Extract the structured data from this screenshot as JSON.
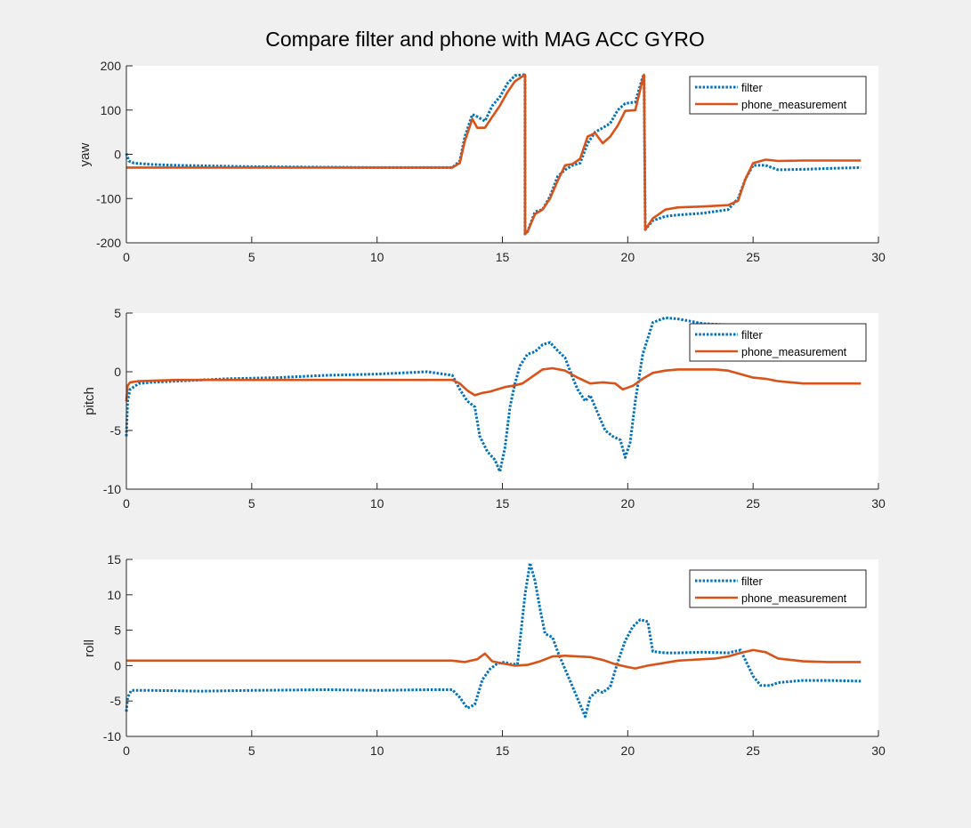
{
  "figure": {
    "title": "Compare filter and phone with MAG ACC GYRO"
  },
  "colors": {
    "filter": "#0072BD",
    "phone_measurement": "#D95319",
    "axes_background": "#ffffff",
    "figure_background": "#f0f0f0",
    "axis_line": "#262626"
  },
  "chart_data": [
    {
      "type": "line",
      "ylabel": "yaw",
      "xlabel": "",
      "xlim": [
        0,
        30
      ],
      "ylim": [
        -200,
        200
      ],
      "xticks": [
        0,
        5,
        10,
        15,
        20,
        25,
        30
      ],
      "yticks": [
        -200,
        -100,
        0,
        100,
        200
      ],
      "legend_position": "top-right",
      "series": [
        {
          "name": "filter",
          "style": "dotted",
          "x": [
            0,
            0.1,
            0.3,
            1,
            2,
            5,
            10,
            13,
            13.3,
            13.5,
            13.8,
            14,
            14.3,
            14.6,
            14.9,
            15.2,
            15.5,
            15.85,
            15.9,
            15.9,
            16.0,
            16.3,
            16.6,
            16.9,
            17.2,
            17.5,
            17.8,
            18.1,
            18.4,
            18.7,
            19.0,
            19.3,
            19.6,
            19.9,
            20.3,
            20.6,
            20.65,
            20.7,
            21.0,
            21.5,
            22,
            23,
            24,
            24.4,
            24.7,
            25,
            25.5,
            26,
            27,
            28,
            29.3
          ],
          "y": [
            2,
            -15,
            -20,
            -23,
            -25,
            -28,
            -30,
            -30,
            -15,
            40,
            90,
            85,
            75,
            110,
            130,
            160,
            178,
            180,
            180,
            -180,
            -175,
            -130,
            -125,
            -95,
            -50,
            -35,
            -25,
            -20,
            25,
            50,
            60,
            70,
            100,
            115,
            118,
            175,
            180,
            -170,
            -150,
            -140,
            -137,
            -133,
            -125,
            -100,
            -55,
            -25,
            -25,
            -35,
            -34,
            -32,
            -30
          ]
        },
        {
          "name": "phone_measurement",
          "style": "solid",
          "x": [
            0,
            1,
            5,
            10,
            13,
            13.3,
            13.5,
            13.8,
            14,
            14.3,
            14.6,
            14.9,
            15.2,
            15.5,
            15.85,
            15.9,
            15.9,
            16.0,
            16.3,
            16.6,
            16.9,
            17.2,
            17.5,
            17.8,
            18.1,
            18.4,
            18.7,
            19.0,
            19.3,
            19.6,
            19.9,
            20.3,
            20.6,
            20.65,
            20.7,
            21.0,
            21.5,
            22,
            23,
            24,
            24.4,
            24.7,
            25,
            25.5,
            26,
            27,
            28,
            29.3
          ],
          "y": [
            -30,
            -30,
            -30,
            -30,
            -30,
            -20,
            30,
            80,
            60,
            60,
            85,
            110,
            140,
            165,
            178,
            180,
            -180,
            -175,
            -135,
            -125,
            -100,
            -60,
            -25,
            -22,
            -10,
            40,
            48,
            25,
            40,
            65,
            98,
            100,
            170,
            180,
            -170,
            -145,
            -125,
            -120,
            -118,
            -115,
            -105,
            -55,
            -20,
            -12,
            -15,
            -14,
            -14,
            -14
          ]
        }
      ]
    },
    {
      "type": "line",
      "ylabel": "pitch",
      "xlabel": "",
      "xlim": [
        0,
        30
      ],
      "ylim": [
        -10,
        5
      ],
      "xticks": [
        0,
        5,
        10,
        15,
        20,
        25,
        30
      ],
      "yticks": [
        -10,
        -5,
        0,
        5
      ],
      "legend_position": "top-right",
      "series": [
        {
          "name": "filter",
          "style": "dotted",
          "x": [
            0,
            0.05,
            0.15,
            0.5,
            1,
            2,
            4,
            6,
            8,
            10,
            12,
            13,
            13.3,
            13.6,
            13.9,
            14.1,
            14.4,
            14.7,
            14.9,
            15.1,
            15.3,
            15.5,
            15.7,
            16.0,
            16.3,
            16.6,
            16.9,
            17.2,
            17.5,
            17.8,
            18.0,
            18.3,
            18.5,
            18.8,
            19.1,
            19.4,
            19.7,
            19.9,
            20.1,
            20.3,
            20.6,
            21.0,
            21.5,
            22,
            22.5,
            23,
            24,
            25
          ],
          "y": [
            -5.5,
            -2.5,
            -1.5,
            -1.0,
            -0.9,
            -0.8,
            -0.6,
            -0.5,
            -0.3,
            -0.2,
            0.0,
            -0.3,
            -1.5,
            -2.5,
            -3.0,
            -5.5,
            -6.8,
            -7.5,
            -8.5,
            -6.5,
            -3.0,
            -1.0,
            0.5,
            1.5,
            1.7,
            2.3,
            2.5,
            1.8,
            1.2,
            -0.5,
            -1.5,
            -2.5,
            -2.0,
            -3.5,
            -5.0,
            -5.5,
            -5.8,
            -7.3,
            -6.0,
            -2.5,
            1.5,
            4.2,
            4.6,
            4.5,
            4.3,
            4.1,
            4.0,
            4.0
          ]
        },
        {
          "name": "phone_measurement",
          "style": "solid",
          "x": [
            0,
            0.05,
            0.15,
            0.5,
            2,
            5,
            10,
            13,
            13.3,
            13.6,
            13.9,
            14.2,
            14.5,
            14.8,
            15.1,
            15.4,
            15.8,
            16.2,
            16.6,
            17.0,
            17.5,
            18.0,
            18.5,
            19.0,
            19.5,
            19.8,
            20.2,
            20.6,
            21.0,
            21.5,
            22,
            22.5,
            23,
            23.5,
            24,
            24.5,
            25,
            25.5,
            26,
            27,
            28,
            29.3
          ],
          "y": [
            -2.5,
            -1.2,
            -0.9,
            -0.8,
            -0.7,
            -0.7,
            -0.7,
            -0.7,
            -1.0,
            -1.6,
            -2.0,
            -1.8,
            -1.7,
            -1.5,
            -1.3,
            -1.2,
            -1.0,
            -0.4,
            0.2,
            0.3,
            0.1,
            -0.5,
            -1.0,
            -0.9,
            -1.0,
            -1.5,
            -1.2,
            -0.6,
            -0.1,
            0.1,
            0.2,
            0.2,
            0.2,
            0.2,
            0.1,
            -0.2,
            -0.5,
            -0.6,
            -0.8,
            -1.0,
            -1.0,
            -1.0
          ]
        }
      ]
    },
    {
      "type": "line",
      "ylabel": "roll",
      "xlabel": "",
      "xlim": [
        0,
        30
      ],
      "ylim": [
        -10,
        15
      ],
      "xticks": [
        0,
        5,
        10,
        15,
        20,
        25,
        30
      ],
      "yticks": [
        -10,
        -5,
        0,
        5,
        10,
        15
      ],
      "legend_position": "top-right",
      "series": [
        {
          "name": "filter",
          "style": "dotted",
          "x": [
            0,
            0.05,
            0.2,
            1,
            3,
            5,
            8,
            10,
            12,
            13,
            13.3,
            13.6,
            13.9,
            14.2,
            14.5,
            14.8,
            15.1,
            15.3,
            15.6,
            15.9,
            16.1,
            16.3,
            16.5,
            16.7,
            17.0,
            17.2,
            17.5,
            17.8,
            18.1,
            18.3,
            18.5,
            18.8,
            19.0,
            19.3,
            19.6,
            19.9,
            20.2,
            20.5,
            20.8,
            21.0,
            21.5,
            22,
            23,
            24,
            24.5,
            25,
            25.3,
            25.7,
            26,
            27,
            28,
            29.3
          ],
          "y": [
            -6.5,
            -4.5,
            -3.5,
            -3.5,
            -3.6,
            -3.5,
            -3.4,
            -3.5,
            -3.4,
            -3.4,
            -4.5,
            -6.0,
            -5.5,
            -2.0,
            -0.5,
            0.3,
            0.5,
            0.2,
            0.2,
            10.0,
            14.5,
            12.0,
            8.0,
            4.5,
            4.0,
            2.0,
            -0.5,
            -3.0,
            -5.5,
            -7.2,
            -4.5,
            -3.5,
            -3.8,
            -3.0,
            0.5,
            3.5,
            5.5,
            6.5,
            6.2,
            2.0,
            1.8,
            1.8,
            1.9,
            1.8,
            2.2,
            -1.5,
            -2.8,
            -2.8,
            -2.4,
            -2.1,
            -2.1,
            -2.2
          ]
        },
        {
          "name": "phone_measurement",
          "style": "solid",
          "x": [
            0,
            2,
            5,
            10,
            13,
            13.5,
            14.0,
            14.3,
            14.6,
            15.0,
            15.5,
            16.0,
            16.5,
            17.0,
            17.5,
            18.0,
            18.5,
            19.0,
            19.5,
            20.0,
            20.3,
            20.8,
            21.5,
            22,
            22.5,
            23,
            23.5,
            24,
            24.5,
            25,
            25.5,
            26,
            27,
            28,
            29.3
          ],
          "y": [
            0.7,
            0.7,
            0.7,
            0.7,
            0.7,
            0.5,
            0.9,
            1.7,
            0.6,
            0.3,
            0.0,
            0.1,
            0.6,
            1.3,
            1.4,
            1.3,
            1.2,
            0.8,
            0.2,
            -0.2,
            -0.4,
            0.0,
            0.4,
            0.7,
            0.8,
            0.9,
            1.0,
            1.3,
            1.8,
            2.2,
            1.9,
            1.0,
            0.6,
            0.5,
            0.5
          ]
        }
      ]
    }
  ]
}
